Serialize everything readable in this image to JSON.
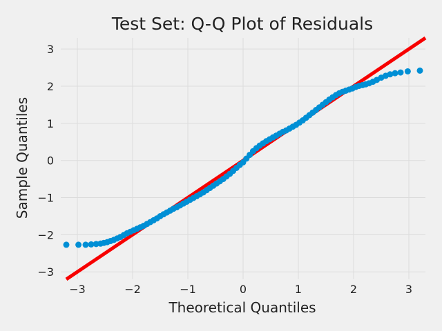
{
  "chart_data": {
    "type": "scatter",
    "title": "Test Set: Q-Q Plot of Residuals",
    "xlabel": "Theoretical Quantiles",
    "ylabel": "Sample Quantiles",
    "xlim": [
      -3.3,
      3.3
    ],
    "ylim": [
      -3.2,
      3.3
    ],
    "xticks": [
      -3,
      -2,
      -1,
      0,
      1,
      2,
      3
    ],
    "yticks": [
      -3,
      -2,
      -1,
      0,
      1,
      2,
      3
    ],
    "xtick_labels": [
      "−3",
      "−2",
      "−1",
      "0",
      "1",
      "2",
      "3"
    ],
    "ytick_labels": [
      "−3",
      "−2",
      "−1",
      "0",
      "1",
      "2",
      "3"
    ],
    "grid": true,
    "colors": {
      "points": "#008fd5",
      "reference_line": "#f70000",
      "background": "#f0f0f0",
      "grid": "#dcdcdc"
    },
    "reference_line": {
      "slope": 1,
      "intercept": 0
    },
    "points": [
      [
        -3.2,
        -2.27
      ],
      [
        -2.98,
        -2.27
      ],
      [
        -2.85,
        -2.27
      ],
      [
        -2.75,
        -2.26
      ],
      [
        -2.66,
        -2.25
      ],
      [
        -2.58,
        -2.24
      ],
      [
        -2.52,
        -2.22
      ],
      [
        -2.46,
        -2.2
      ],
      [
        -2.4,
        -2.17
      ],
      [
        -2.34,
        -2.14
      ],
      [
        -2.28,
        -2.1
      ],
      [
        -2.22,
        -2.06
      ],
      [
        -2.16,
        -2.01
      ],
      [
        -2.1,
        -1.96
      ],
      [
        -2.04,
        -1.92
      ],
      [
        -1.98,
        -1.88
      ],
      [
        -1.92,
        -1.84
      ],
      [
        -1.86,
        -1.8
      ],
      [
        -1.8,
        -1.76
      ],
      [
        -1.74,
        -1.71
      ],
      [
        -1.68,
        -1.66
      ],
      [
        -1.62,
        -1.61
      ],
      [
        -1.56,
        -1.56
      ],
      [
        -1.5,
        -1.5
      ],
      [
        -1.44,
        -1.45
      ],
      [
        -1.38,
        -1.4
      ],
      [
        -1.32,
        -1.35
      ],
      [
        -1.26,
        -1.3
      ],
      [
        -1.2,
        -1.26
      ],
      [
        -1.14,
        -1.21
      ],
      [
        -1.08,
        -1.16
      ],
      [
        -1.02,
        -1.11
      ],
      [
        -0.96,
        -1.06
      ],
      [
        -0.9,
        -1.01
      ],
      [
        -0.84,
        -0.96
      ],
      [
        -0.78,
        -0.91
      ],
      [
        -0.72,
        -0.86
      ],
      [
        -0.66,
        -0.8
      ],
      [
        -0.6,
        -0.74
      ],
      [
        -0.54,
        -0.68
      ],
      [
        -0.48,
        -0.62
      ],
      [
        -0.42,
        -0.56
      ],
      [
        -0.36,
        -0.5
      ],
      [
        -0.3,
        -0.43
      ],
      [
        -0.24,
        -0.36
      ],
      [
        -0.18,
        -0.28
      ],
      [
        -0.12,
        -0.2
      ],
      [
        -0.06,
        -0.12
      ],
      [
        0.0,
        -0.05
      ],
      [
        0.06,
        0.05
      ],
      [
        0.12,
        0.15
      ],
      [
        0.18,
        0.25
      ],
      [
        0.24,
        0.33
      ],
      [
        0.3,
        0.4
      ],
      [
        0.36,
        0.46
      ],
      [
        0.42,
        0.52
      ],
      [
        0.48,
        0.57
      ],
      [
        0.54,
        0.62
      ],
      [
        0.6,
        0.67
      ],
      [
        0.66,
        0.72
      ],
      [
        0.72,
        0.77
      ],
      [
        0.78,
        0.81
      ],
      [
        0.84,
        0.86
      ],
      [
        0.9,
        0.91
      ],
      [
        0.96,
        0.96
      ],
      [
        1.02,
        1.02
      ],
      [
        1.08,
        1.08
      ],
      [
        1.14,
        1.15
      ],
      [
        1.2,
        1.22
      ],
      [
        1.26,
        1.29
      ],
      [
        1.32,
        1.36
      ],
      [
        1.38,
        1.43
      ],
      [
        1.44,
        1.5
      ],
      [
        1.5,
        1.57
      ],
      [
        1.56,
        1.64
      ],
      [
        1.62,
        1.7
      ],
      [
        1.68,
        1.76
      ],
      [
        1.74,
        1.81
      ],
      [
        1.8,
        1.85
      ],
      [
        1.86,
        1.88
      ],
      [
        1.92,
        1.91
      ],
      [
        1.98,
        1.94
      ],
      [
        2.04,
        1.98
      ],
      [
        2.1,
        2.01
      ],
      [
        2.16,
        2.03
      ],
      [
        2.22,
        2.05
      ],
      [
        2.28,
        2.08
      ],
      [
        2.35,
        2.12
      ],
      [
        2.42,
        2.17
      ],
      [
        2.5,
        2.23
      ],
      [
        2.58,
        2.28
      ],
      [
        2.66,
        2.32
      ],
      [
        2.75,
        2.35
      ],
      [
        2.85,
        2.37
      ],
      [
        2.98,
        2.4
      ],
      [
        3.2,
        2.42
      ]
    ]
  }
}
